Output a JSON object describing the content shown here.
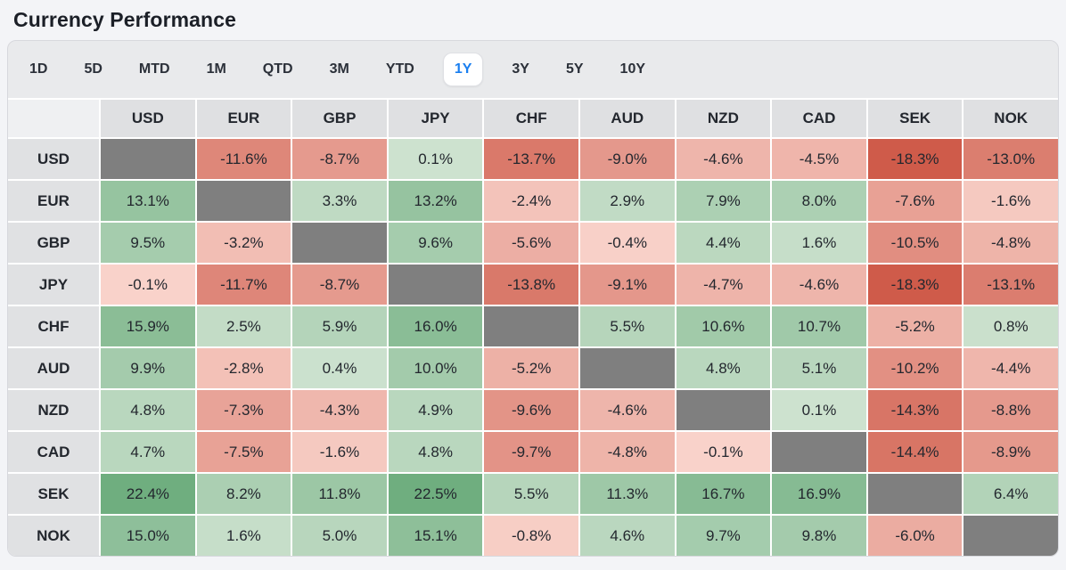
{
  "title": "Currency Performance",
  "tabs": {
    "items": [
      "1D",
      "5D",
      "MTD",
      "1M",
      "QTD",
      "3M",
      "YTD",
      "1Y",
      "3Y",
      "5Y",
      "10Y"
    ],
    "active": "1Y"
  },
  "chart_data": {
    "type": "heatmap",
    "title": "Currency Performance",
    "selected_period": "1Y",
    "unit": "percent",
    "value_format": "one_decimal_percent",
    "columns": [
      "USD",
      "EUR",
      "GBP",
      "JPY",
      "CHF",
      "AUD",
      "NZD",
      "CAD",
      "SEK",
      "NOK"
    ],
    "rows": [
      "USD",
      "EUR",
      "GBP",
      "JPY",
      "CHF",
      "AUD",
      "NZD",
      "CAD",
      "SEK",
      "NOK"
    ],
    "values": [
      [
        null,
        -11.6,
        -8.7,
        0.1,
        -13.7,
        -9.0,
        -4.6,
        -4.5,
        -18.3,
        -13.0
      ],
      [
        13.1,
        null,
        3.3,
        13.2,
        -2.4,
        2.9,
        7.9,
        8.0,
        -7.6,
        -1.6
      ],
      [
        9.5,
        -3.2,
        null,
        9.6,
        -5.6,
        -0.4,
        4.4,
        1.6,
        -10.5,
        -4.8
      ],
      [
        -0.1,
        -11.7,
        -8.7,
        null,
        -13.8,
        -9.1,
        -4.7,
        -4.6,
        -18.3,
        -13.1
      ],
      [
        15.9,
        2.5,
        5.9,
        16.0,
        null,
        5.5,
        10.6,
        10.7,
        -5.2,
        0.8
      ],
      [
        9.9,
        -2.8,
        0.4,
        10.0,
        -5.2,
        null,
        4.8,
        5.1,
        -10.2,
        -4.4
      ],
      [
        4.8,
        -7.3,
        -4.3,
        4.9,
        -9.6,
        -4.6,
        null,
        0.1,
        -14.3,
        -8.8
      ],
      [
        4.7,
        -7.5,
        -1.6,
        4.8,
        -9.7,
        -4.8,
        -0.1,
        null,
        -14.4,
        -8.9
      ],
      [
        22.4,
        8.2,
        11.8,
        22.5,
        5.5,
        11.3,
        16.7,
        16.9,
        null,
        6.4
      ],
      [
        15.0,
        1.6,
        5.0,
        15.1,
        -0.8,
        4.6,
        9.7,
        9.8,
        -6.0,
        null
      ]
    ],
    "color_scale": {
      "positive_low": "#cde2cf",
      "positive_high": "#6fae7f",
      "positive_max_abs": 22.5,
      "negative_low": "#f9d3cb",
      "negative_high": "#cf5b4a",
      "negative_max_abs": 18.3,
      "diagonal": "#7f7f7f"
    }
  },
  "colors": {
    "active_tab_text": "#1a7ff0",
    "header_bg": "#dfe0e2",
    "page_bg": "#f3f4f7"
  }
}
